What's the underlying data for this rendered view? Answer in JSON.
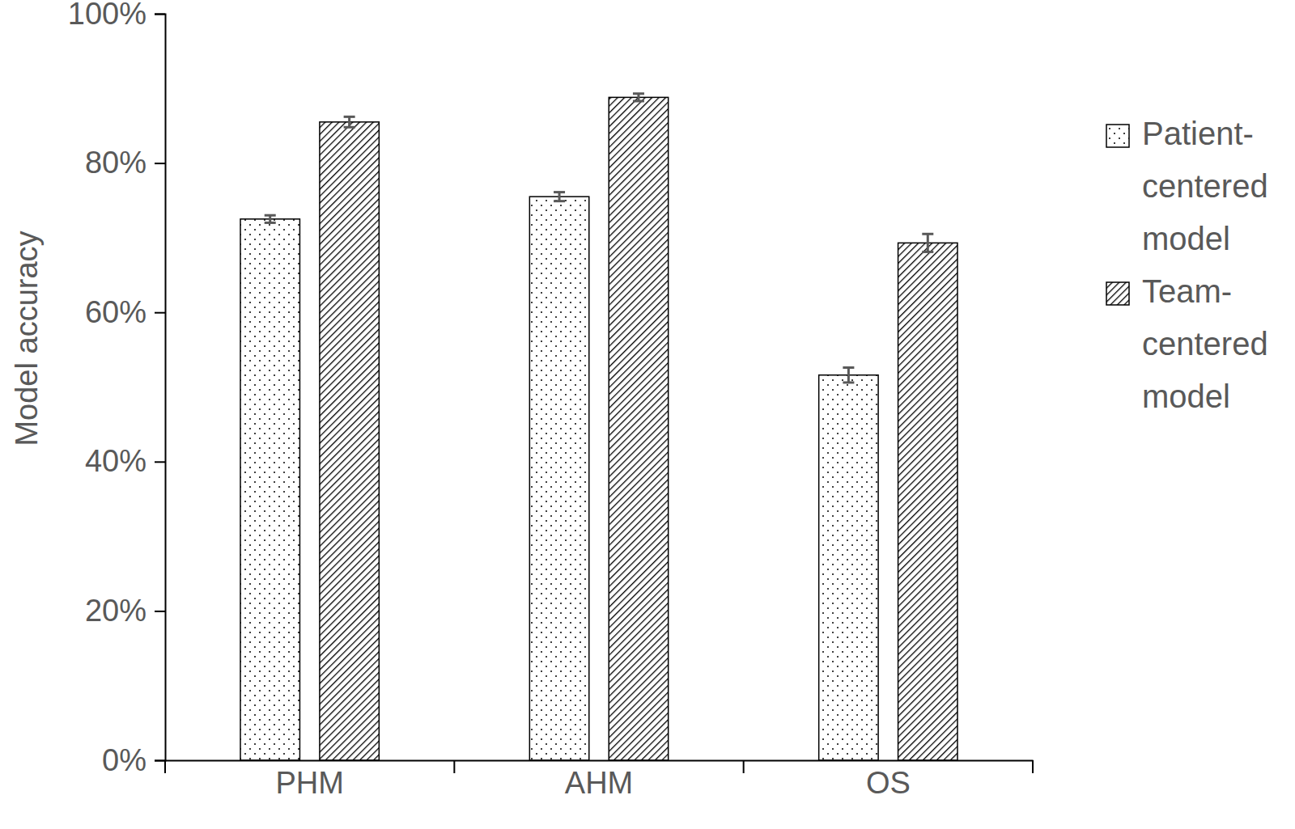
{
  "chart_data": {
    "type": "bar",
    "y_label": "Model accuracy",
    "categories": [
      "PHM",
      "AHM",
      "OS"
    ],
    "series": [
      {
        "name": "Patient-centered model",
        "color": "#000000",
        "marker": "dots",
        "values": [
          72.5,
          75.5,
          51.6
        ],
        "errors": [
          0.5,
          0.6,
          1.0
        ]
      },
      {
        "name": "Team-centered model",
        "color": "#000000",
        "marker": "hatch",
        "values": [
          85.5,
          88.8,
          69.3
        ],
        "errors": [
          0.7,
          0.5,
          1.2
        ]
      }
    ],
    "ylim": [
      0,
      100
    ],
    "yticks": [
      {
        "value": 0,
        "label": "0%"
      },
      {
        "value": 20,
        "label": "20%"
      },
      {
        "value": 40,
        "label": "40%"
      },
      {
        "value": 60,
        "label": "60%"
      },
      {
        "value": 80,
        "label": "80%"
      },
      {
        "value": 100,
        "label": "100%"
      }
    ],
    "grid": false,
    "legend": "right"
  }
}
